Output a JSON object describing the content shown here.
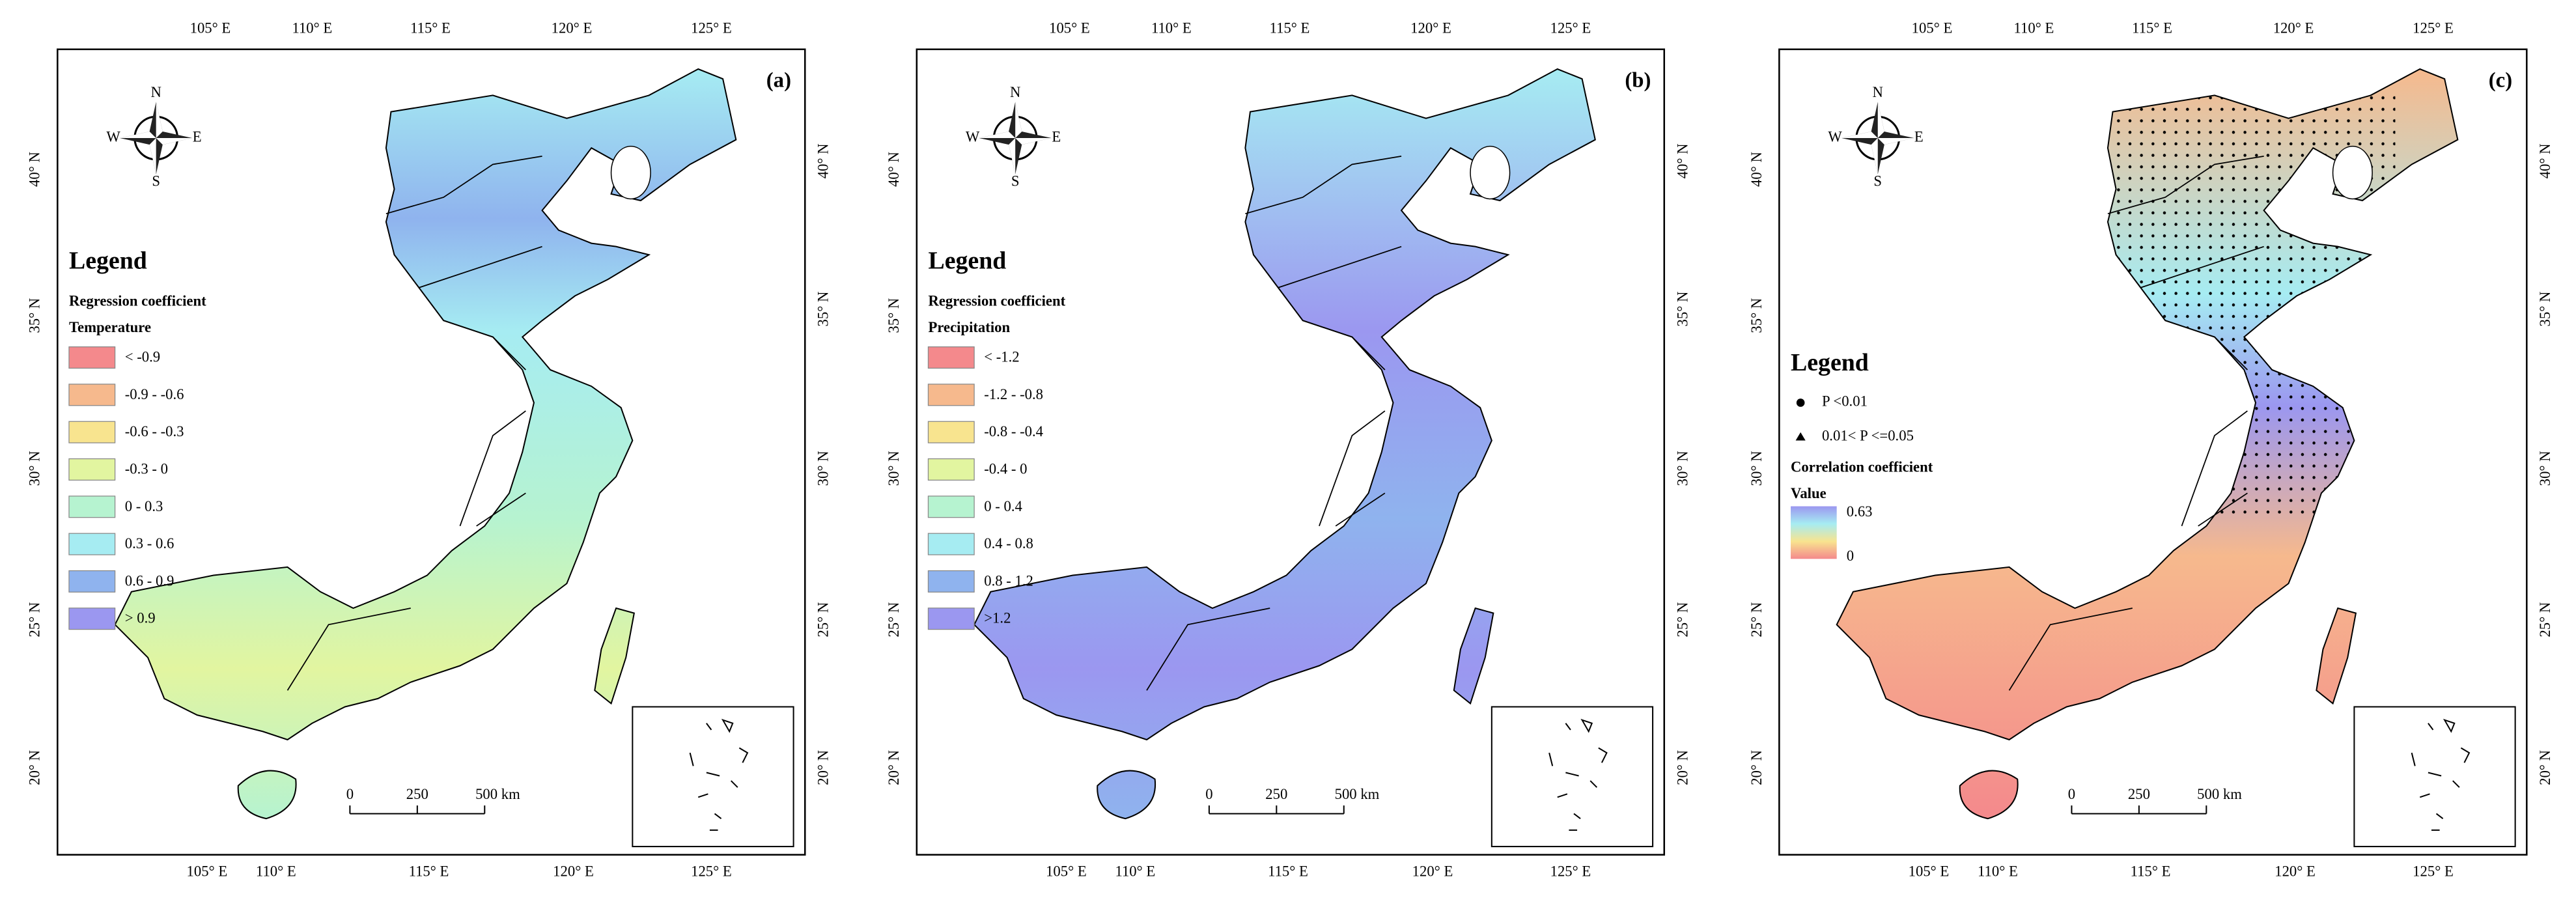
{
  "lon_ticks": [
    "105° E",
    "110° E",
    "115° E",
    "120° E",
    "125° E"
  ],
  "lat_ticks": [
    "40° N",
    "35° N",
    "30° N",
    "25° N",
    "20° N"
  ],
  "compass": {
    "n": "N",
    "s": "S",
    "w": "W",
    "e": "E"
  },
  "scale_bar": [
    "0",
    "250",
    "500 km"
  ],
  "panels": [
    {
      "label": "(a)",
      "legend": {
        "title": "Legend",
        "subtitle": "Regression coefficient",
        "variable": "Temperature",
        "classes": [
          {
            "label": "< -0.9",
            "color": "#f4898c"
          },
          {
            "label": "-0.9 - -0.6",
            "color": "#f6b98d"
          },
          {
            "label": "-0.6 - -0.3",
            "color": "#f8e48f"
          },
          {
            "label": "-0.3 - 0",
            "color": "#e2f5a0"
          },
          {
            "label": "0 - 0.3",
            "color": "#b6f3d0"
          },
          {
            "label": "0.3 - 0.6",
            "color": "#a6ecf2"
          },
          {
            "label": "0.6 - 0.9",
            "color": "#8fb3ee"
          },
          {
            "label": "> 0.9",
            "color": "#9b97f0"
          }
        ]
      }
    },
    {
      "label": "(b)",
      "legend": {
        "title": "Legend",
        "subtitle": "Regression coefficient",
        "variable": "Precipitation",
        "classes": [
          {
            "label": "< -1.2",
            "color": "#f4898c"
          },
          {
            "label": "-1.2 - -0.8",
            "color": "#f6b98d"
          },
          {
            "label": "-0.8 - -0.4",
            "color": "#f8e48f"
          },
          {
            "label": "-0.4 - 0",
            "color": "#e2f5a0"
          },
          {
            "label": "0 - 0.4",
            "color": "#b6f3d0"
          },
          {
            "label": "0.4 - 0.8",
            "color": "#a6ecf2"
          },
          {
            "label": "0.8 - 1.2",
            "color": "#8fb3ee"
          },
          {
            "label": ">1.2",
            "color": "#9b97f0"
          }
        ]
      }
    },
    {
      "label": "(c)",
      "legend": {
        "title": "Legend",
        "items": [
          {
            "label": "P <0.01",
            "symbol": "circle"
          },
          {
            "label": "0.01< P <=0.05",
            "symbol": "triangle"
          }
        ],
        "subtitle": "Correlation coefficient",
        "variable": "Value",
        "ramp": {
          "high": "0.63",
          "low": "0",
          "colors": [
            "#9b97f0",
            "#a6ecf2",
            "#f8e48f",
            "#f4898c"
          ]
        }
      }
    }
  ]
}
